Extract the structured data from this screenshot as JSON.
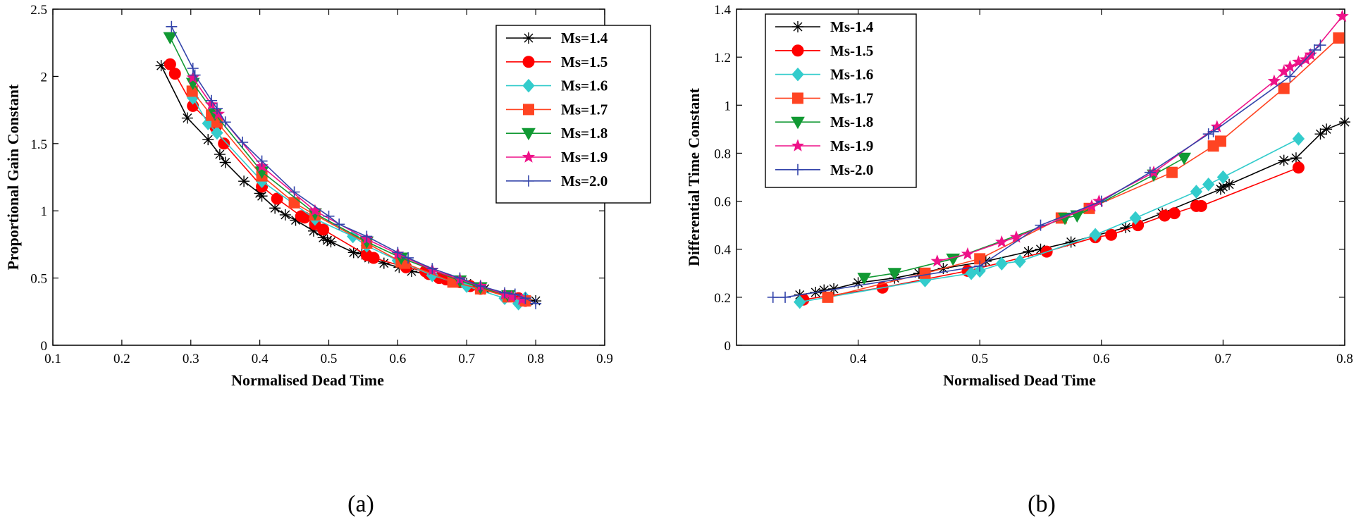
{
  "chart_data": [
    {
      "type": "line",
      "panel_label": "(a)",
      "xlabel": "Normalised Dead Time",
      "ylabel": "Proportional Gain Constant",
      "xlim": [
        0.1,
        0.9
      ],
      "ylim": [
        0,
        2.5
      ],
      "xticks": [
        "0.1",
        "0.2",
        "0.3",
        "0.4",
        "0.5",
        "0.6",
        "0.7",
        "0.8",
        "0.9"
      ],
      "yticks": [
        "0",
        "0.5",
        "1",
        "1.5",
        "2",
        "2.5"
      ],
      "legend_position": "top-right",
      "series": [
        {
          "name": "Ms=1.4",
          "color": "#000000",
          "marker": "asterisk",
          "x": [
            0.257,
            0.295,
            0.325,
            0.342,
            0.35,
            0.377,
            0.4,
            0.403,
            0.422,
            0.437,
            0.452,
            0.478,
            0.492,
            0.498,
            0.503,
            0.536,
            0.548,
            0.558,
            0.58,
            0.602,
            0.62,
            0.645,
            0.672,
            0.7,
            0.726,
            0.77,
            0.8
          ],
          "y": [
            2.08,
            1.69,
            1.53,
            1.42,
            1.36,
            1.22,
            1.13,
            1.11,
            1.02,
            0.97,
            0.93,
            0.85,
            0.8,
            0.78,
            0.77,
            0.69,
            0.68,
            0.65,
            0.61,
            0.58,
            0.55,
            0.53,
            0.49,
            0.46,
            0.42,
            0.36,
            0.33
          ]
        },
        {
          "name": "Ms=1.5",
          "color": "#ff0000",
          "marker": "circle",
          "x": [
            0.27,
            0.277,
            0.303,
            0.336,
            0.348,
            0.403,
            0.425,
            0.46,
            0.465,
            0.48,
            0.492,
            0.555,
            0.565,
            0.612,
            0.64,
            0.645,
            0.66,
            0.67,
            0.69,
            0.705,
            0.72,
            0.775,
            0.785
          ],
          "y": [
            2.09,
            2.02,
            1.78,
            1.62,
            1.5,
            1.18,
            1.09,
            0.96,
            0.95,
            0.9,
            0.86,
            0.67,
            0.65,
            0.58,
            0.55,
            0.53,
            0.5,
            0.49,
            0.47,
            0.44,
            0.42,
            0.35,
            0.33
          ]
        },
        {
          "name": "Ms=1.6",
          "color": "#33cccc",
          "marker": "diamond",
          "x": [
            0.303,
            0.325,
            0.338,
            0.403,
            0.48,
            0.535,
            0.555,
            0.6,
            0.65,
            0.7,
            0.755,
            0.775,
            0.785
          ],
          "y": [
            1.84,
            1.65,
            1.58,
            1.22,
            0.94,
            0.81,
            0.74,
            0.63,
            0.52,
            0.44,
            0.35,
            0.31,
            0.35
          ]
        },
        {
          "name": "Ms=1.7",
          "color": "#ff4422",
          "marker": "square",
          "x": [
            0.302,
            0.33,
            0.338,
            0.403,
            0.45,
            0.48,
            0.555,
            0.605,
            0.61,
            0.68,
            0.72,
            0.76,
            0.785
          ],
          "y": [
            1.89,
            1.71,
            1.66,
            1.26,
            1.06,
            0.97,
            0.76,
            0.62,
            0.61,
            0.47,
            0.42,
            0.36,
            0.33
          ]
        },
        {
          "name": "Ms=1.8",
          "color": "#119933",
          "marker": "triangle-down",
          "x": [
            0.27,
            0.303,
            0.335,
            0.403,
            0.48,
            0.555,
            0.605,
            0.69,
            0.72,
            0.76
          ],
          "y": [
            2.29,
            1.95,
            1.72,
            1.29,
            0.98,
            0.77,
            0.65,
            0.48,
            0.43,
            0.37
          ]
        },
        {
          "name": "Ms=1.9",
          "color": "#ee1188",
          "marker": "star",
          "x": [
            0.303,
            0.33,
            0.34,
            0.403,
            0.48,
            0.555,
            0.6,
            0.65,
            0.69,
            0.72,
            0.755,
            0.765,
            0.78
          ],
          "y": [
            1.99,
            1.79,
            1.72,
            1.33,
            1.0,
            0.79,
            0.68,
            0.56,
            0.49,
            0.44,
            0.38,
            0.36,
            0.34
          ]
        },
        {
          "name": "Ms=2.0",
          "color": "#3344aa",
          "marker": "plus",
          "x": [
            0.272,
            0.303,
            0.306,
            0.33,
            0.338,
            0.35,
            0.375,
            0.403,
            0.45,
            0.5,
            0.515,
            0.555,
            0.6,
            0.615,
            0.65,
            0.69,
            0.72,
            0.755,
            0.77,
            0.785,
            0.8
          ],
          "y": [
            2.37,
            2.06,
            2.01,
            1.82,
            1.76,
            1.66,
            1.51,
            1.37,
            1.14,
            0.96,
            0.9,
            0.81,
            0.69,
            0.65,
            0.57,
            0.5,
            0.44,
            0.39,
            0.38,
            0.35,
            0.31
          ]
        }
      ]
    },
    {
      "type": "line",
      "panel_label": "(b)",
      "xlabel": "Normalised Dead Time",
      "ylabel": "Differential Time Constant",
      "xlim": [
        0.3,
        0.8
      ],
      "ylim": [
        0,
        1.4
      ],
      "xticks": [
        "0.4",
        "0.5",
        "0.6",
        "0.7",
        "0.8"
      ],
      "yticks": [
        "0",
        "0.2",
        "0.4",
        "0.6",
        "0.8",
        "1",
        "1.2",
        "1.4"
      ],
      "legend_position": "top-left",
      "series": [
        {
          "name": "Ms-1.4",
          "color": "#000000",
          "marker": "asterisk",
          "x": [
            0.352,
            0.365,
            0.372,
            0.38,
            0.4,
            0.43,
            0.45,
            0.47,
            0.505,
            0.54,
            0.55,
            0.575,
            0.62,
            0.65,
            0.698,
            0.7,
            0.705,
            0.75,
            0.76,
            0.78,
            0.785,
            0.8
          ],
          "y": [
            0.21,
            0.22,
            0.23,
            0.235,
            0.26,
            0.28,
            0.3,
            0.32,
            0.35,
            0.39,
            0.4,
            0.43,
            0.49,
            0.55,
            0.65,
            0.66,
            0.67,
            0.77,
            0.78,
            0.88,
            0.9,
            0.93
          ]
        },
        {
          "name": "Ms-1.5",
          "color": "#ff0000",
          "marker": "circle",
          "x": [
            0.355,
            0.42,
            0.49,
            0.555,
            0.595,
            0.608,
            0.63,
            0.652,
            0.66,
            0.678,
            0.682,
            0.762
          ],
          "y": [
            0.19,
            0.24,
            0.31,
            0.39,
            0.45,
            0.46,
            0.5,
            0.54,
            0.55,
            0.58,
            0.58,
            0.74
          ]
        },
        {
          "name": "Ms-1.6",
          "color": "#33cccc",
          "marker": "diamond",
          "x": [
            0.352,
            0.455,
            0.493,
            0.5,
            0.518,
            0.533,
            0.595,
            0.628,
            0.678,
            0.688,
            0.7,
            0.762
          ],
          "y": [
            0.18,
            0.27,
            0.3,
            0.31,
            0.34,
            0.35,
            0.46,
            0.53,
            0.64,
            0.67,
            0.7,
            0.86
          ]
        },
        {
          "name": "Ms-1.7",
          "color": "#ff4422",
          "marker": "square",
          "x": [
            0.375,
            0.455,
            0.5,
            0.567,
            0.59,
            0.658,
            0.692,
            0.698,
            0.75,
            0.795
          ],
          "y": [
            0.2,
            0.3,
            0.36,
            0.53,
            0.57,
            0.72,
            0.83,
            0.85,
            1.07,
            1.28
          ]
        },
        {
          "name": "Ms-1.8",
          "color": "#119933",
          "marker": "triangle-down",
          "x": [
            0.405,
            0.43,
            0.478,
            0.57,
            0.58,
            0.643,
            0.668
          ],
          "y": [
            0.28,
            0.3,
            0.36,
            0.53,
            0.54,
            0.71,
            0.78
          ]
        },
        {
          "name": "Ms-1.9",
          "color": "#ee1188",
          "marker": "star",
          "x": [
            0.465,
            0.49,
            0.518,
            0.53,
            0.592,
            0.598,
            0.643,
            0.695,
            0.742,
            0.75,
            0.755,
            0.762,
            0.768,
            0.772,
            0.798
          ],
          "y": [
            0.35,
            0.38,
            0.43,
            0.45,
            0.58,
            0.6,
            0.72,
            0.91,
            1.1,
            1.14,
            1.16,
            1.18,
            1.19,
            1.21,
            1.37
          ]
        },
        {
          "name": "Ms-2.0",
          "color": "#3344aa",
          "marker": "plus",
          "x": [
            0.33,
            0.34,
            0.5,
            0.55,
            0.6,
            0.64,
            0.688,
            0.692,
            0.755,
            0.775,
            0.78
          ],
          "y": [
            0.2,
            0.2,
            0.33,
            0.5,
            0.6,
            0.72,
            0.88,
            0.89,
            1.12,
            1.23,
            1.25
          ]
        }
      ]
    }
  ]
}
